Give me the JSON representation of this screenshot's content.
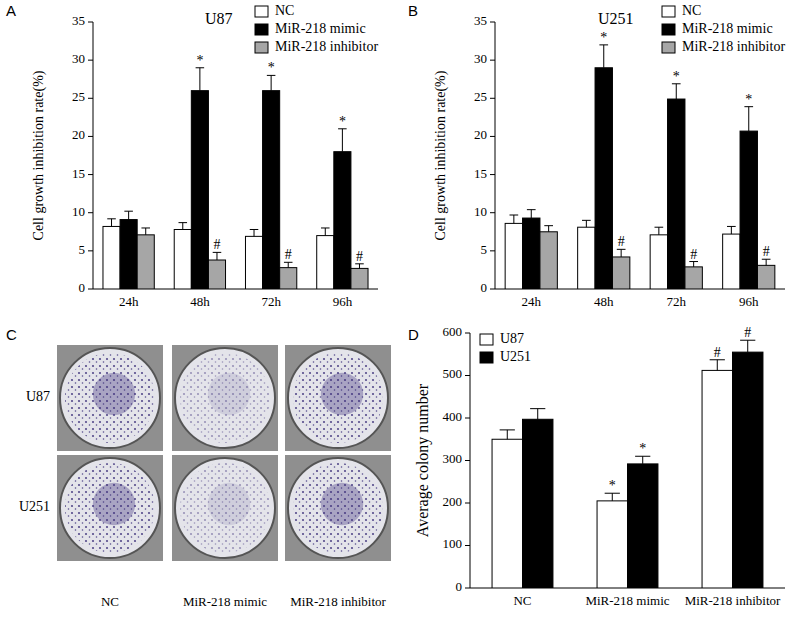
{
  "chart_data": [
    {
      "type": "bar",
      "panel": "A",
      "title": "U87",
      "y_label": "Cell growth inhibition rate(%)",
      "categories": [
        "24h",
        "48h",
        "72h",
        "96h"
      ],
      "series": [
        {
          "name": "NC",
          "color": "#ffffff",
          "values": [
            8.2,
            7.8,
            6.9,
            7.0
          ],
          "errors": [
            1.0,
            0.9,
            0.9,
            1.0
          ]
        },
        {
          "name": "MiR-218 mimic",
          "color": "#000000",
          "values": [
            9.1,
            26.0,
            26.0,
            18.0
          ],
          "errors": [
            1.1,
            3.0,
            2.0,
            3.0
          ],
          "annotations": [
            null,
            "*",
            "*",
            "*"
          ]
        },
        {
          "name": "MiR-218 inhibitor",
          "color": "#a6a6a6",
          "values": [
            7.1,
            3.8,
            2.8,
            2.7
          ],
          "errors": [
            0.9,
            1.0,
            0.7,
            0.6
          ],
          "annotations": [
            null,
            "#",
            "#",
            "#"
          ]
        }
      ],
      "ylim": [
        0,
        35
      ],
      "yticks": [
        0,
        5,
        10,
        15,
        20,
        25,
        30,
        35
      ],
      "legend": "top-right"
    },
    {
      "type": "bar",
      "panel": "B",
      "title": "U251",
      "y_label": "Cell growth inhibition rate(%)",
      "categories": [
        "24h",
        "48h",
        "72h",
        "96h"
      ],
      "series": [
        {
          "name": "NC",
          "color": "#ffffff",
          "values": [
            8.6,
            8.1,
            7.1,
            7.2
          ],
          "errors": [
            1.1,
            0.9,
            1.0,
            1.0
          ]
        },
        {
          "name": "MiR-218 mimic",
          "color": "#000000",
          "values": [
            9.3,
            29.0,
            24.9,
            20.7
          ],
          "errors": [
            1.1,
            3.0,
            2.0,
            3.2
          ],
          "annotations": [
            null,
            "*",
            "*",
            "*"
          ]
        },
        {
          "name": "MiR-218 inhibitor",
          "color": "#a6a6a6",
          "values": [
            7.5,
            4.2,
            2.9,
            3.1
          ],
          "errors": [
            0.8,
            1.0,
            0.7,
            0.8
          ],
          "annotations": [
            null,
            "#",
            "#",
            "#"
          ]
        }
      ],
      "ylim": [
        0,
        35
      ],
      "yticks": [
        0,
        5,
        10,
        15,
        20,
        25,
        30,
        35
      ],
      "legend": "top-right"
    },
    {
      "type": "bar",
      "panel": "D",
      "y_label": "Average colony number",
      "categories": [
        "NC",
        "MiR-218 mimic",
        "MiR-218 inhibitor"
      ],
      "series": [
        {
          "name": "U87",
          "color": "#ffffff",
          "values": [
            350,
            205,
            512
          ],
          "errors": [
            22,
            18,
            25
          ],
          "annotations": [
            null,
            "*",
            "#"
          ]
        },
        {
          "name": "U251",
          "color": "#000000",
          "values": [
            397,
            292,
            555
          ],
          "errors": [
            25,
            18,
            28
          ],
          "annotations": [
            null,
            "*",
            "#"
          ]
        }
      ],
      "ylim": [
        0,
        600
      ],
      "yticks": [
        0,
        100,
        200,
        300,
        400,
        500,
        600
      ],
      "legend": "top-left"
    }
  ],
  "image_panel": {
    "panel": "C",
    "rows": [
      "U87",
      "U251"
    ],
    "columns": [
      "NC",
      "MiR-218 mimic",
      "MiR-218 inhibitor"
    ]
  }
}
